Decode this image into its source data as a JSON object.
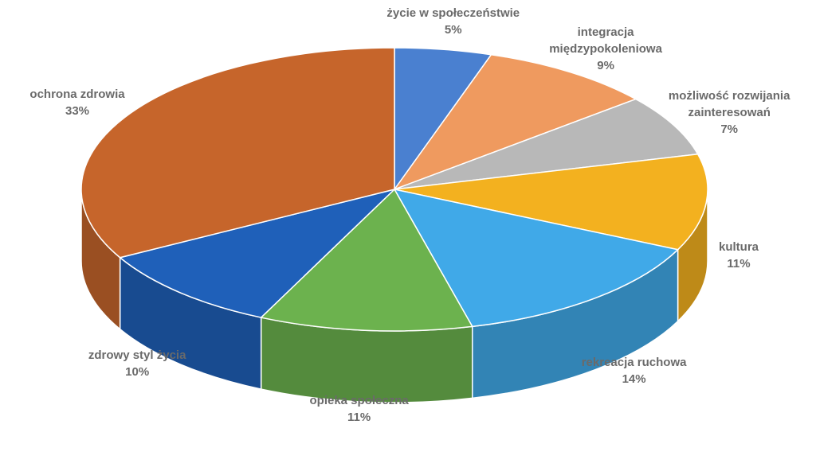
{
  "chart_data": {
    "type": "pie",
    "categories": [
      "życie w społeczeństwie",
      "integracja międzypokoleniowa",
      "możliwość rozwijania zainteresowań",
      "kultura",
      "rekreacja ruchowa",
      "opieka społeczna",
      "zdrowy styl życia",
      "ochrona zdrowia"
    ],
    "values": [
      5,
      9,
      7,
      11,
      14,
      11,
      10,
      33
    ],
    "value_labels": [
      "5%",
      "9%",
      "7%",
      "11%",
      "14%",
      "11%",
      "10%",
      "33%"
    ],
    "colors": [
      "#4a80d0",
      "#ef9a5f",
      "#b8b8b8",
      "#f3b11f",
      "#40a9e8",
      "#6cb24e",
      "#1f60b9",
      "#c6652b"
    ]
  }
}
